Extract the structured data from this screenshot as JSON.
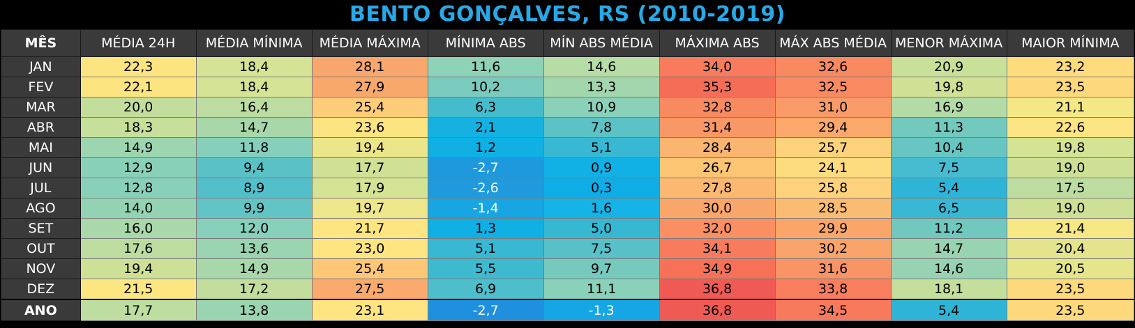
{
  "title": "BENTO GONÇALVES, RS (2010-2019)",
  "headers": [
    "MÊS",
    "MÉDIA 24H",
    "MÉDIA MÍNIMA",
    "MÉDIA MÁXIMA",
    "MÍNIMA ABS",
    "MÍN ABS MÉDIA",
    "MÁXIMA ABS",
    "MÁX ABS MÉDIA",
    "MENOR MÁXIMA",
    "MAIOR MÍNIMA"
  ],
  "rows": [
    {
      "month": "JAN",
      "values": [
        "22,3",
        "18,4",
        "28,1",
        "11,6",
        "14,6",
        "34,0",
        "32,6",
        "20,9",
        "23,2"
      ],
      "colors": [
        "#fce581",
        "#d4e394",
        "#f9a76c",
        "#8ed3b8",
        "#b7dda6",
        "#f77b5c",
        "#f98961",
        "#c9e099",
        "#fedb7c"
      ]
    },
    {
      "month": "FEV",
      "values": [
        "22,1",
        "18,4",
        "27,9",
        "10,2",
        "13,3",
        "35,3",
        "32,5",
        "19,8",
        "23,5"
      ],
      "colors": [
        "#fce581",
        "#d4e394",
        "#f9a86c",
        "#7acbbe",
        "#a2d7ad",
        "#f56c57",
        "#f98a62",
        "#d0e196",
        "#fed97b"
      ]
    },
    {
      "month": "MAR",
      "values": [
        "20,0",
        "16,4",
        "25,4",
        "6,3",
        "10,9",
        "32,8",
        "31,0",
        "16,9",
        "21,1"
      ],
      "colors": [
        "#c3de9c",
        "#bcdca2",
        "#fdcd7a",
        "#45bccb",
        "#8bd1b9",
        "#f88a61",
        "#f99b68",
        "#b3dba6",
        "#f4e886"
      ]
    },
    {
      "month": "ABR",
      "values": [
        "18,3",
        "14,7",
        "23,6",
        "2,1",
        "7,8",
        "31,4",
        "29,4",
        "11,3",
        "22,6"
      ],
      "colors": [
        "#c6df9a",
        "#a8d8aa",
        "#fde482",
        "#16b1e0",
        "#5dc2c5",
        "#f89866",
        "#faa86c",
        "#73c9be",
        "#fee583"
      ]
    },
    {
      "month": "MAI",
      "values": [
        "14,9",
        "11,8",
        "19,4",
        "1,2",
        "5,1",
        "28,4",
        "25,7",
        "10,4",
        "19,8"
      ],
      "colors": [
        "#9dd5b0",
        "#86d0bb",
        "#ece68a",
        "#10b0e4",
        "#38b8d2",
        "#fab570",
        "#fdd27c",
        "#68c6c2",
        "#d4e394"
      ]
    },
    {
      "month": "JUN",
      "values": [
        "12,9",
        "9,4",
        "17,7",
        "-2,7",
        "0,9",
        "26,7",
        "24,1",
        "7,5",
        "19,0"
      ],
      "colors": [
        "#89d0b9",
        "#5ac1c6",
        "#d0e196",
        "#1f99dd",
        "#11b1e6",
        "#fbc574",
        "#fddb7f",
        "#47bcd0",
        "#cde095"
      ]
    },
    {
      "month": "JUL",
      "values": [
        "12,8",
        "8,9",
        "17,9",
        "-2,6",
        "0,3",
        "27,8",
        "25,8",
        "5,4",
        "17,5"
      ],
      "colors": [
        "#88d0ba",
        "#52bfca",
        "#d4e394",
        "#1f9bdd",
        "#0eade6",
        "#fab871",
        "#fdd27c",
        "#2eb4d6",
        "#bcdca0"
      ]
    },
    {
      "month": "AGO",
      "values": [
        "14,0",
        "9,9",
        "19,7",
        "-1,4",
        "1,6",
        "30,0",
        "28,5",
        "6,5",
        "19,0"
      ],
      "colors": [
        "#93d3b4",
        "#62c4c5",
        "#ede68a",
        "#17a5e3",
        "#16b3e6",
        "#f9a66b",
        "#fabc73",
        "#39b8d3",
        "#cde095"
      ]
    },
    {
      "month": "SET",
      "values": [
        "16,0",
        "12,0",
        "21,7",
        "1,3",
        "5,0",
        "32,0",
        "29,9",
        "11,2",
        "21,4"
      ],
      "colors": [
        "#a9d8aa",
        "#87d0bb",
        "#fde582",
        "#10b0e5",
        "#36b8d3",
        "#f98f63",
        "#faa66b",
        "#70c8bf",
        "#f5e885"
      ]
    },
    {
      "month": "OUT",
      "values": [
        "17,6",
        "13,6",
        "23,0",
        "5,1",
        "7,5",
        "34,1",
        "30,2",
        "14,7",
        "20,4"
      ],
      "colors": [
        "#bcdca0",
        "#9ad4b1",
        "#fee582",
        "#38b8d2",
        "#58c0c8",
        "#f77b5c",
        "#f9a46a",
        "#98d3b2",
        "#e4e48c"
      ]
    },
    {
      "month": "NOV",
      "values": [
        "19,4",
        "14,9",
        "25,4",
        "5,5",
        "9,7",
        "34,9",
        "31,6",
        "14,6",
        "20,5"
      ],
      "colors": [
        "#cde095",
        "#a8d8aa",
        "#fdc777",
        "#3dbad0",
        "#76cabd",
        "#f67158",
        "#f99466",
        "#97d3b2",
        "#e6e58b"
      ]
    },
    {
      "month": "DEZ",
      "values": [
        "21,5",
        "17,2",
        "27,5",
        "6,9",
        "11,1",
        "36,8",
        "33,8",
        "18,1",
        "23,5"
      ],
      "colors": [
        "#fce682",
        "#c3de9c",
        "#f9aa6c",
        "#4ebecb",
        "#8ad1b9",
        "#f05a55",
        "#f87e5e",
        "#c4de9b",
        "#fed97b"
      ]
    },
    {
      "month": "ANO",
      "values": [
        "17,7",
        "13,8",
        "23,1",
        "-2,7",
        "-1,3",
        "36,8",
        "34,5",
        "5,4",
        "23,5"
      ],
      "colors": [
        "#bedda0",
        "#9ad4b1",
        "#fee582",
        "#1e90de",
        "#16a6e6",
        "#f05a55",
        "#f87a5c",
        "#2eb4d6",
        "#fed97b"
      ]
    }
  ]
}
